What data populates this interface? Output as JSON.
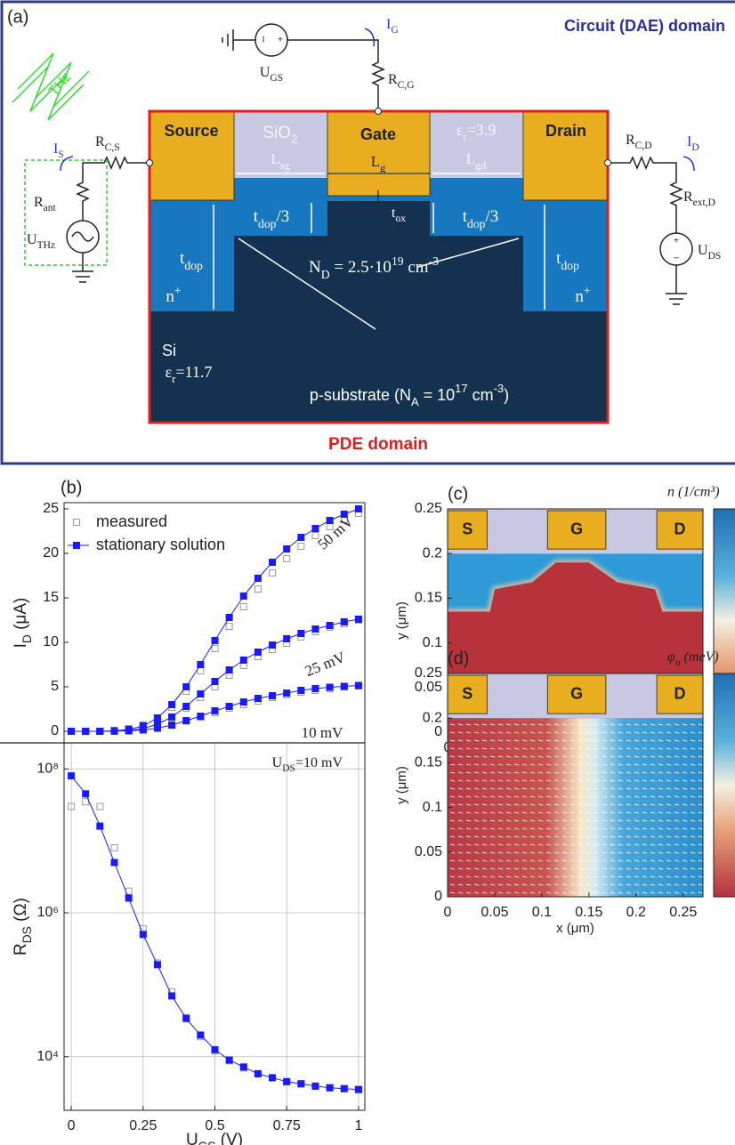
{
  "diagram": {
    "panel_label": "(a)",
    "circuit_domain": "Circuit (DAE) domain",
    "pde_domain": "PDE domain",
    "source": "Source",
    "gate": "Gate",
    "drain": "Drain",
    "sio2": [
      {
        "t": "SiO"
      },
      {
        "s": "2"
      }
    ],
    "eps_oxide": [
      {
        "t": "ε"
      },
      {
        "s": "r"
      },
      {
        "t": "=3.9"
      }
    ],
    "l_sg": [
      {
        "t": "L"
      },
      {
        "s": "sg"
      }
    ],
    "l_g": [
      {
        "t": "L"
      },
      {
        "s": "g"
      }
    ],
    "l_gd": [
      {
        "t": "L"
      },
      {
        "s": "gd"
      }
    ],
    "t_dop3_left": [
      {
        "t": "t"
      },
      {
        "s": "dop"
      },
      {
        "t": "/3"
      }
    ],
    "t_dop3_right": [
      {
        "t": "t"
      },
      {
        "s": "dop"
      },
      {
        "t": "/3"
      }
    ],
    "t_ox": [
      {
        "t": "t"
      },
      {
        "s": "ox"
      }
    ],
    "t_dop_left": [
      {
        "t": "t"
      },
      {
        "s": "dop"
      }
    ],
    "t_dop_right": [
      {
        "t": "t"
      },
      {
        "s": "dop"
      }
    ],
    "n_plus_left": [
      {
        "t": "n"
      },
      {
        "p": "+"
      }
    ],
    "n_plus_right": [
      {
        "t": "n"
      },
      {
        "p": "+"
      }
    ],
    "doping": [
      {
        "t": "N"
      },
      {
        "s": "D"
      },
      {
        "t": " = 2.5·10"
      },
      {
        "p": "19"
      },
      {
        "t": " cm"
      },
      {
        "p": "-3"
      }
    ],
    "si": "Si",
    "eps_si": [
      {
        "t": "ε"
      },
      {
        "s": "r"
      },
      {
        "t": "=11.7"
      }
    ],
    "substrate": [
      {
        "t": "p-substrate (N"
      },
      {
        "s": "A"
      },
      {
        "t": " = 10"
      },
      {
        "p": "17"
      },
      {
        "t": " cm"
      },
      {
        "p": "-3"
      },
      {
        "t": ")"
      }
    ],
    "u_gs": [
      {
        "t": "U"
      },
      {
        "s": "GS"
      }
    ],
    "r_cg": [
      {
        "t": "R"
      },
      {
        "s": "C,G"
      }
    ],
    "i_g": [
      {
        "t": "I"
      },
      {
        "s": "G"
      }
    ],
    "r_cs": [
      {
        "t": "R"
      },
      {
        "s": "C,S"
      }
    ],
    "i_s": [
      {
        "t": "I"
      },
      {
        "s": "S"
      }
    ],
    "r_ant": [
      {
        "t": "R"
      },
      {
        "s": "ant"
      }
    ],
    "u_thz": [
      {
        "t": "U"
      },
      {
        "s": "THz"
      }
    ],
    "r_cd": [
      {
        "t": "R"
      },
      {
        "s": "C,D"
      }
    ],
    "i_d": [
      {
        "t": "I"
      },
      {
        "s": "D"
      }
    ],
    "r_ext": [
      {
        "t": "R"
      },
      {
        "s": "ext,D"
      }
    ],
    "u_ds": [
      {
        "t": "U"
      },
      {
        "s": "DS"
      }
    ],
    "thz": "THz"
  },
  "chart_data": [
    {
      "type": "scatter",
      "panel_label": "(b)",
      "y_label": [
        {
          "t": "I"
        },
        {
          "s": "D"
        },
        {
          "t": " (μA)"
        }
      ],
      "xlim": [
        -0.025,
        1.022
      ],
      "ylim": [
        -1.3,
        25.7
      ],
      "yticks": [
        0,
        5,
        10,
        15,
        20,
        25
      ],
      "legend": "upper left",
      "x": [
        0,
        0.05,
        0.1,
        0.15,
        0.2,
        0.25,
        0.3,
        0.35,
        0.4,
        0.45,
        0.5,
        0.55,
        0.6,
        0.65,
        0.7,
        0.75,
        0.8,
        0.85,
        0.9,
        0.95,
        1
      ],
      "curve_labels": [
        "50 mV",
        "25 mV",
        "10 mV"
      ],
      "groups": [
        {
          "name": "measured",
          "color": "#9a9a9a",
          "marker": "open",
          "line": false,
          "series": [
            {
              "values": [
                0,
                0,
                0,
                0.1,
                0.3,
                0.7,
                1.4,
                2.7,
                4.5,
                6.8,
                9.3,
                11.8,
                14,
                16,
                17.8,
                19.4,
                20.8,
                22,
                23,
                23.8,
                24.5
              ]
            },
            {
              "values": [
                0,
                0,
                0,
                0.1,
                0.3,
                0.5,
                0.9,
                1.6,
                2.6,
                3.8,
                5,
                6.3,
                7.4,
                8.4,
                9.2,
                9.9,
                10.6,
                11.2,
                11.7,
                12.1,
                12.5
              ]
            },
            {
              "values": [
                0,
                0,
                0,
                0.05,
                0.2,
                0.3,
                0.45,
                0.75,
                1.15,
                1.6,
                2.1,
                2.6,
                3,
                3.4,
                3.8,
                4.1,
                4.4,
                4.6,
                4.8,
                5,
                5.1
              ]
            }
          ]
        },
        {
          "name": "stationary solution",
          "color": "#1a1aff",
          "marker": "filled",
          "line": true,
          "series": [
            {
              "values": [
                0,
                0,
                0,
                0.05,
                0.2,
                0.6,
                1.5,
                3,
                5,
                7.5,
                10.2,
                12.8,
                15.2,
                17.2,
                19,
                20.5,
                21.8,
                22.8,
                23.7,
                24.4,
                25
              ]
            },
            {
              "values": [
                0,
                0,
                0,
                0.03,
                0.1,
                0.3,
                0.8,
                1.6,
                2.8,
                4.2,
                5.6,
                6.9,
                8,
                8.9,
                9.7,
                10.4,
                11,
                11.5,
                11.9,
                12.3,
                12.6
              ]
            },
            {
              "values": [
                0,
                0,
                0,
                0.02,
                0.05,
                0.15,
                0.35,
                0.7,
                1.2,
                1.7,
                2.3,
                2.8,
                3.3,
                3.7,
                4,
                4.3,
                4.6,
                4.8,
                4.95,
                5.05,
                5.15
              ]
            }
          ]
        }
      ]
    },
    {
      "type": "scatter",
      "log_y": true,
      "grid": true,
      "x_label": [
        {
          "t": "U"
        },
        {
          "s": "GS"
        },
        {
          "t": " (V)"
        }
      ],
      "y_label": [
        {
          "t": "R"
        },
        {
          "s": "DS"
        },
        {
          "t": " (Ω)"
        }
      ],
      "annotation": [
        {
          "t": "U"
        },
        {
          "s": "DS"
        },
        {
          "t": "=10 mV"
        }
      ],
      "xlim": [
        -0.025,
        1.022
      ],
      "xticks": [
        0,
        0.25,
        0.5,
        0.75,
        1
      ],
      "ylim": [
        1800,
        230000000
      ],
      "yticks": [
        {
          "value": 10000,
          "label": "10⁴"
        },
        {
          "value": 1000000,
          "label": "10⁶"
        },
        {
          "value": 100000000,
          "label": "10⁸"
        }
      ],
      "x": [
        0,
        0.05,
        0.1,
        0.15,
        0.2,
        0.25,
        0.3,
        0.35,
        0.4,
        0.45,
        0.5,
        0.55,
        0.6,
        0.65,
        0.7,
        0.75,
        0.8,
        0.85,
        0.9,
        0.95,
        1
      ],
      "groups": [
        {
          "color": "#9a9a9a",
          "marker": "open",
          "line": false,
          "series": [
            {
              "values": [
                30000000,
                35000000,
                30000000,
                8000000,
                2000000,
                600000,
                200000,
                80000,
                35000,
                19000,
                12000,
                8800,
                7000,
                5800,
                5100,
                4500,
                4200,
                3900,
                3700,
                3600,
                3500
              ]
            }
          ]
        },
        {
          "color": "#1a1aff",
          "marker": "filled",
          "line": true,
          "series": [
            {
              "values": [
                80000000,
                45000000,
                16000000,
                5000000,
                1600000,
                500000,
                190000,
                70000,
                34000,
                20000,
                12500,
                9000,
                7200,
                5800,
                5100,
                4500,
                4200,
                3900,
                3700,
                3600,
                3500
              ]
            }
          ]
        }
      ]
    },
    {
      "type": "heatmap",
      "panel_label": "(c)",
      "title": "n (1/cm³)",
      "x_label": "x (μm)",
      "y_label": "y (μm)",
      "contacts": [
        "S",
        "G",
        "D"
      ],
      "xlim": [
        0,
        0.271
      ],
      "ylim": [
        0,
        0.25
      ],
      "xticks": [
        0,
        0.05,
        0.1,
        0.15,
        0.2,
        0.25
      ],
      "yticks": [
        0,
        0.05,
        0.1,
        0.15,
        0.2,
        0.25
      ]
    },
    {
      "type": "heatmap",
      "panel_label": "(d)",
      "title": [
        {
          "t": "φ"
        },
        {
          "s": "n"
        },
        {
          "t": " (meV)"
        }
      ],
      "x_label": "x (μm)",
      "y_label": "y (μm)",
      "contacts": [
        "S",
        "G",
        "D"
      ],
      "xlim": [
        0,
        0.271
      ],
      "ylim": [
        0,
        0.25
      ],
      "xticks": [
        0,
        0.05,
        0.1,
        0.15,
        0.2,
        0.25
      ],
      "yticks": [
        0,
        0.05,
        0.1,
        0.15,
        0.2,
        0.25
      ]
    }
  ]
}
